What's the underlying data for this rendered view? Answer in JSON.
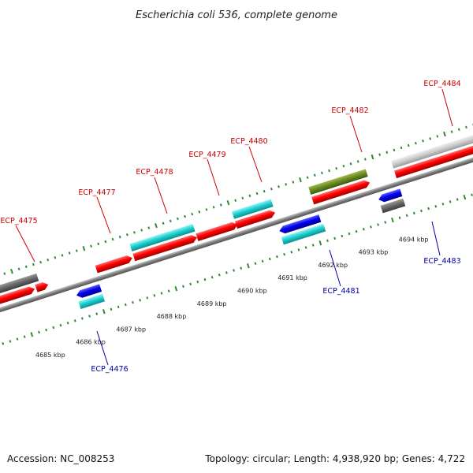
{
  "title": "Escherichia coli 536, complete genome",
  "footer": {
    "accession": "Accession: NC_008253",
    "summary": "Topology: circular; Length: 4,938,920 bp; Genes: 4,722"
  },
  "colors": {
    "backbone": "#8a8a8a",
    "tick": "#2e8b2e",
    "label_forward": "#cc0000",
    "label_reverse": "#0000aa",
    "leader_forward": "#cc0000",
    "leader_reverse": "#0000aa"
  },
  "scale": {
    "kbp_labels": [
      {
        "text": "4685 kbp",
        "kb": 4685
      },
      {
        "text": "4686 kbp",
        "kb": 4686
      },
      {
        "text": "4687 kbp",
        "kb": 4687
      },
      {
        "text": "4688 kbp",
        "kb": 4688
      },
      {
        "text": "4689 kbp",
        "kb": 4689
      },
      {
        "text": "4690 kbp",
        "kb": 4690
      },
      {
        "text": "4691 kbp",
        "kb": 4691
      },
      {
        "text": "4692 kbp",
        "kb": 4692
      },
      {
        "text": "4693 kbp",
        "kb": 4693
      },
      {
        "text": "4694 kbp",
        "kb": 4694
      }
    ]
  },
  "genes": [
    {
      "name": "ECP_4475",
      "strand": "forward"
    },
    {
      "name": "ECP_4476",
      "strand": "reverse"
    },
    {
      "name": "ECP_4477",
      "strand": "forward"
    },
    {
      "name": "ECP_4478",
      "strand": "forward"
    },
    {
      "name": "ECP_4479",
      "strand": "forward"
    },
    {
      "name": "ECP_4480",
      "strand": "forward"
    },
    {
      "name": "ECP_4481",
      "strand": "reverse"
    },
    {
      "name": "ECP_4482",
      "strand": "forward"
    },
    {
      "name": "ECP_4483",
      "strand": "reverse"
    },
    {
      "name": "ECP_4484",
      "strand": "forward"
    }
  ]
}
